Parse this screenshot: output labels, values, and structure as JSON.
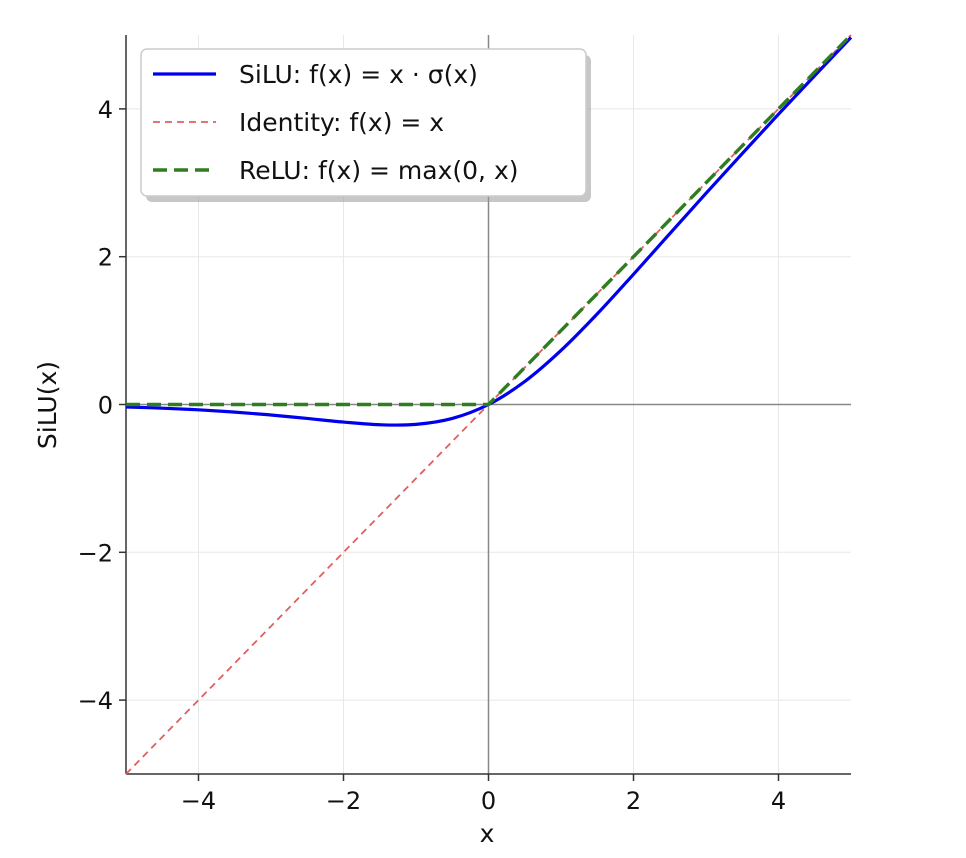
{
  "chart_data": {
    "type": "line",
    "title": "",
    "xlabel": "x",
    "ylabel": "SiLU(x)",
    "xlim": [
      -5,
      5
    ],
    "ylim": [
      -5,
      5
    ],
    "xticks": [
      -4,
      -2,
      0,
      2,
      4
    ],
    "yticks": [
      -4,
      -2,
      0,
      2,
      4
    ],
    "xtick_labels": [
      "−4",
      "−2",
      "0",
      "2",
      "4"
    ],
    "ytick_labels": [
      "−4",
      "−2",
      "0",
      "2",
      "4"
    ],
    "grid": true,
    "legend_position": "top-left",
    "x": [
      -5,
      -4.5,
      -4,
      -3.5,
      -3,
      -2.5,
      -2,
      -1.5,
      -1,
      -0.5,
      0,
      0.5,
      1,
      1.5,
      2,
      2.5,
      3,
      3.5,
      4,
      4.5,
      5
    ],
    "series": [
      {
        "name": "SiLU: f(x) = x · σ(x)",
        "color": "#0000ee",
        "style": "solid",
        "values": [
          -0.033,
          -0.05,
          -0.072,
          -0.103,
          -0.142,
          -0.189,
          -0.238,
          -0.274,
          -0.269,
          -0.189,
          0,
          0.311,
          0.731,
          1.226,
          1.762,
          2.311,
          2.858,
          3.396,
          3.928,
          4.45,
          4.967
        ]
      },
      {
        "name": "Identity: f(x) = x",
        "color": "#e06060",
        "style": "dotted",
        "values": [
          -5,
          -4.5,
          -4,
          -3.5,
          -3,
          -2.5,
          -2,
          -1.5,
          -1,
          -0.5,
          0,
          0.5,
          1,
          1.5,
          2,
          2.5,
          3,
          3.5,
          4,
          4.5,
          5
        ]
      },
      {
        "name": "ReLU: f(x) = max(0, x)",
        "color": "#2e7d1f",
        "style": "dashed",
        "values": [
          0,
          0,
          0,
          0,
          0,
          0,
          0,
          0,
          0,
          0,
          0,
          0.5,
          1,
          1.5,
          2,
          2.5,
          3,
          3.5,
          4,
          4.5,
          5
        ]
      }
    ]
  }
}
